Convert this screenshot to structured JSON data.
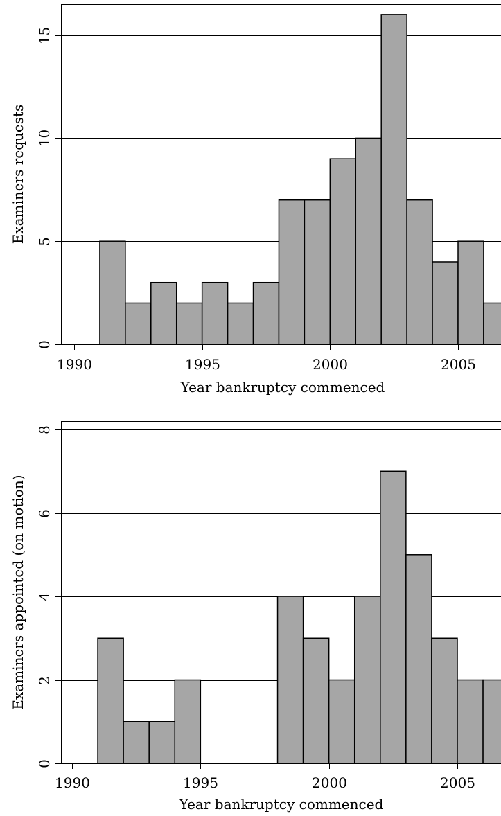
{
  "chart_data": [
    {
      "type": "bar",
      "xlabel": "Year bankruptcy commenced",
      "ylabel": "Examiners requests",
      "xlim": [
        1989.5,
        2007
      ],
      "ylim": [
        0,
        16.5
      ],
      "xticks": [
        1990,
        1995,
        2000,
        2005
      ],
      "xtick_labels": [
        "1990",
        "1995",
        "2000",
        "2005"
      ],
      "yticks": [
        0,
        5,
        10,
        15
      ],
      "ytick_labels": [
        "0",
        "5",
        "10",
        "15"
      ],
      "grid": true,
      "bin_width": 1,
      "bins": [
        {
          "x": 1991,
          "value": 5
        },
        {
          "x": 1992,
          "value": 2
        },
        {
          "x": 1993,
          "value": 3
        },
        {
          "x": 1994,
          "value": 2
        },
        {
          "x": 1995,
          "value": 3
        },
        {
          "x": 1996,
          "value": 2
        },
        {
          "x": 1997,
          "value": 3
        },
        {
          "x": 1998,
          "value": 7
        },
        {
          "x": 1999,
          "value": 7
        },
        {
          "x": 2000,
          "value": 9
        },
        {
          "x": 2001,
          "value": 10
        },
        {
          "x": 2002,
          "value": 16
        },
        {
          "x": 2003,
          "value": 7
        },
        {
          "x": 2004,
          "value": 4
        },
        {
          "x": 2005,
          "value": 5
        },
        {
          "x": 2006,
          "value": 2
        }
      ]
    },
    {
      "type": "bar",
      "xlabel": "Year bankruptcy commenced",
      "ylabel": "Examiners appointed (on motion)",
      "xlim": [
        1989.5,
        2007
      ],
      "ylim": [
        0,
        8.2
      ],
      "xticks": [
        1990,
        1995,
        2000,
        2005
      ],
      "xtick_labels": [
        "1990",
        "1995",
        "2000",
        "2005"
      ],
      "yticks": [
        0,
        2,
        4,
        6,
        8
      ],
      "ytick_labels": [
        "0",
        "2",
        "4",
        "6",
        "8"
      ],
      "grid": true,
      "bin_width": 1,
      "bins": [
        {
          "x": 1991,
          "value": 3
        },
        {
          "x": 1992,
          "value": 1
        },
        {
          "x": 1993,
          "value": 1
        },
        {
          "x": 1994,
          "value": 2
        },
        {
          "x": 1998,
          "value": 4
        },
        {
          "x": 1999,
          "value": 3
        },
        {
          "x": 2000,
          "value": 2
        },
        {
          "x": 2001,
          "value": 4
        },
        {
          "x": 2002,
          "value": 7
        },
        {
          "x": 2003,
          "value": 5
        },
        {
          "x": 2004,
          "value": 3
        },
        {
          "x": 2005,
          "value": 2
        },
        {
          "x": 2006,
          "value": 2
        }
      ]
    }
  ]
}
